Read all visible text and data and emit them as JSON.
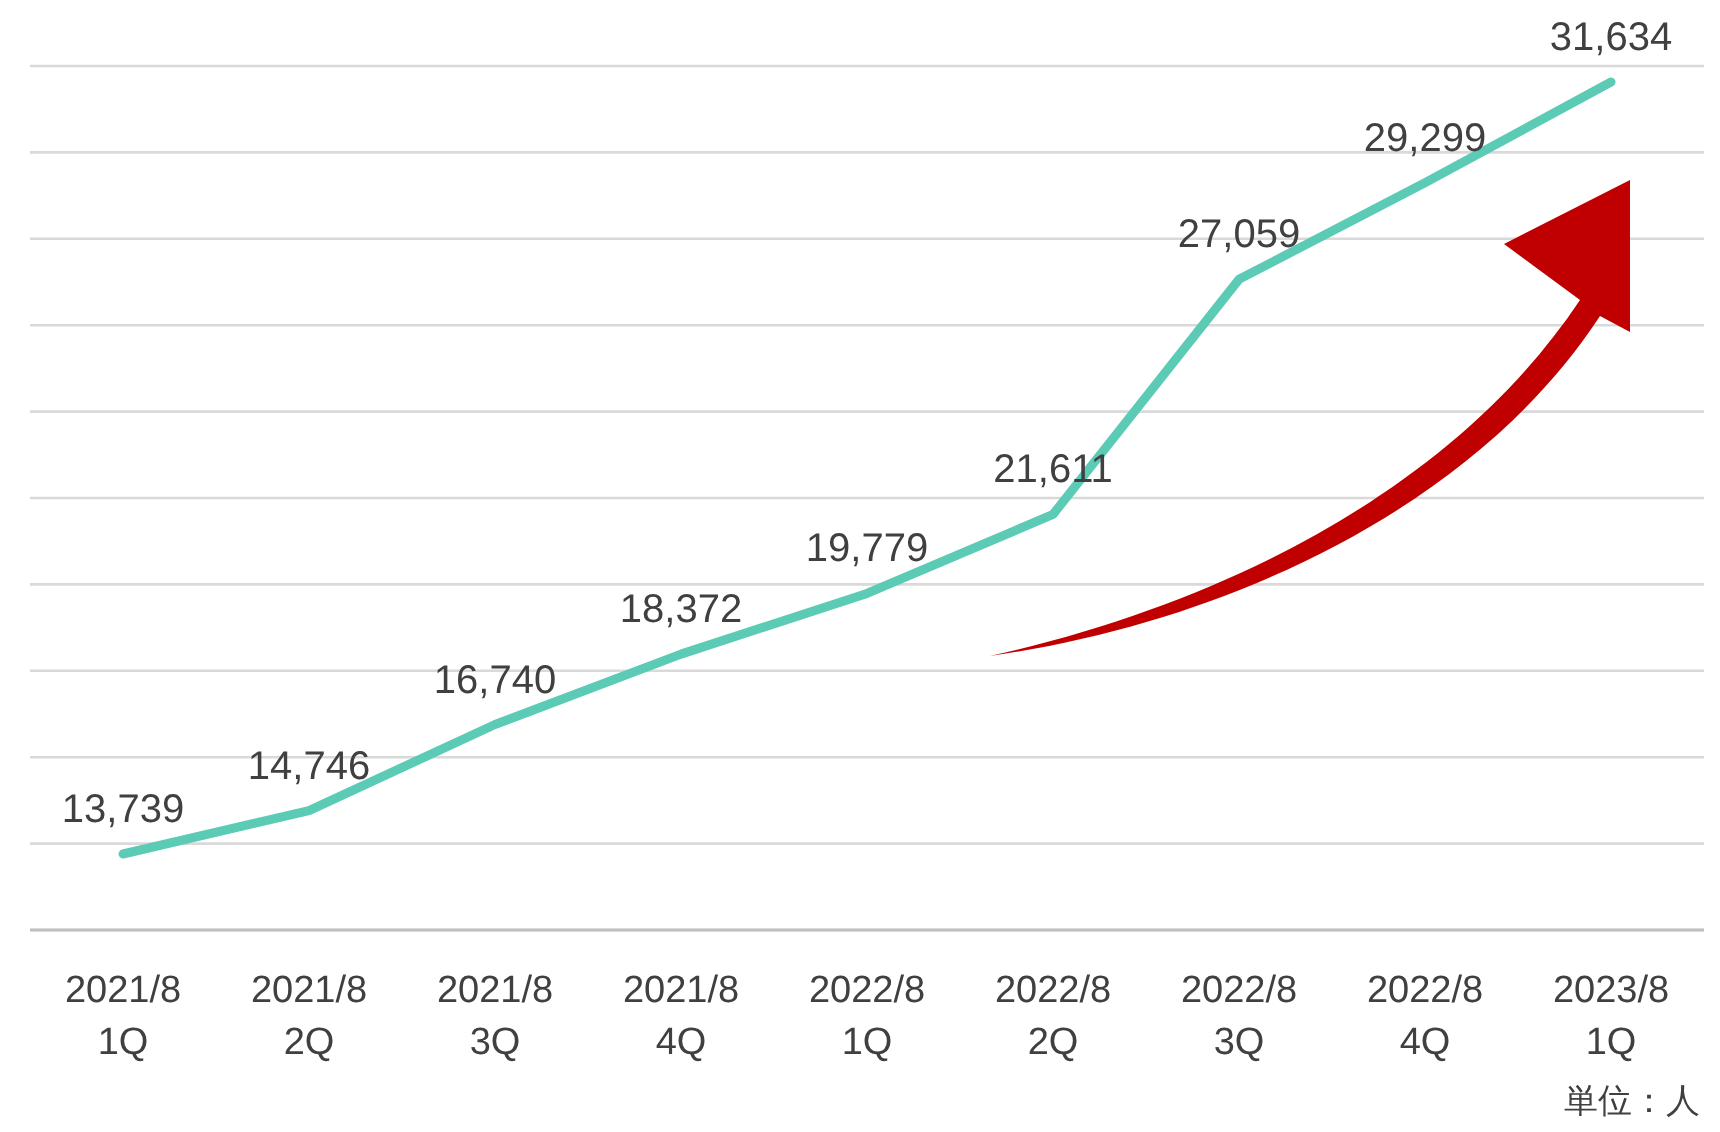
{
  "chart_data": {
    "type": "line",
    "categories": [
      "2021/8\n1Q",
      "2021/8\n2Q",
      "2021/8\n3Q",
      "2021/8\n4Q",
      "2022/8\n1Q",
      "2022/8\n2Q",
      "2022/8\n3Q",
      "2022/8\n4Q",
      "2023/8\n1Q"
    ],
    "series": [
      {
        "color": "#5ccbb5",
        "values": [
          13739,
          14746,
          16740,
          18372,
          19779,
          21611,
          27059,
          29299,
          31634
        ],
        "value_labels": [
          "13,739",
          "14,746",
          "16,740",
          "18,372",
          "19,779",
          "21,611",
          "27,059",
          "29,299",
          "31,634"
        ]
      }
    ],
    "grid": "y",
    "tick_labels": "x",
    "marker": "none",
    "line_style": "solid",
    "annotations": [
      "単位：人"
    ]
  }
}
